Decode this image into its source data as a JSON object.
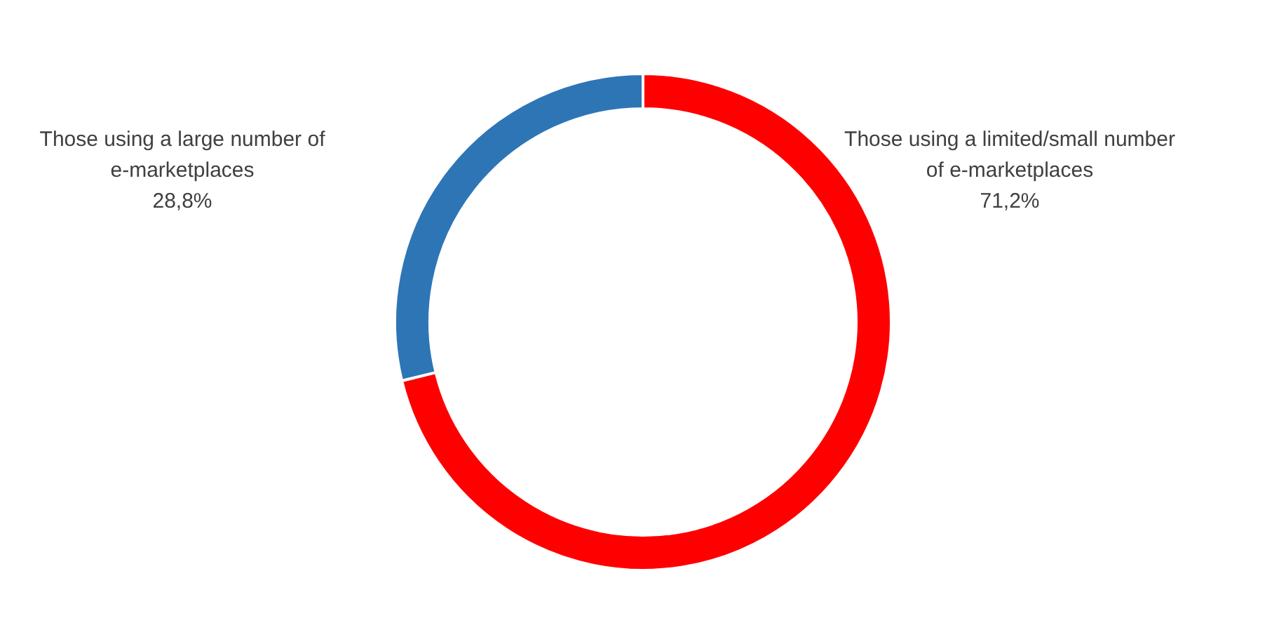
{
  "chart_data": {
    "type": "donut",
    "categories": [
      "Those using a limited/small number of e-marketplaces",
      "Those using a large number of e-marketplaces"
    ],
    "values": [
      71.2,
      28.8
    ],
    "colors": [
      "#ff0000",
      "#2e75b6"
    ],
    "value_labels": [
      "71,2%",
      "28,8%"
    ]
  }
}
